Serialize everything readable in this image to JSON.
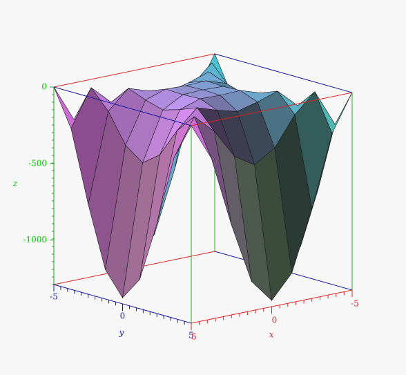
{
  "chart_data": {
    "type": "surface",
    "x_label": "x",
    "y_label": "y",
    "z_label": "z",
    "x": [
      -5,
      -3.75,
      -2.5,
      -1.25,
      0,
      1.25,
      2.5,
      3.75,
      5
    ],
    "y": [
      -5,
      -3.75,
      -2.5,
      -1.25,
      0,
      1.25,
      2.5,
      3.75,
      5
    ],
    "z": [
      [
        0,
        -239.3,
        -703.1,
        -1098.6,
        -1250,
        -1098.6,
        -703.1,
        -239.3,
        0
      ],
      [
        -239.3,
        0,
        -122.1,
        -312.5,
        -395.5,
        -312.5,
        -122.1,
        0,
        -239.3
      ],
      [
        -703.1,
        -122.1,
        0,
        -43.9,
        -78.1,
        -43.9,
        0,
        -122.1,
        -703.1
      ],
      [
        -1098.6,
        -312.5,
        -43.9,
        0,
        -4.9,
        0,
        -43.9,
        -312.5,
        -1098.6
      ],
      [
        -1250,
        -395.5,
        -78.1,
        -4.9,
        0,
        -4.9,
        -78.1,
        -395.5,
        -1250
      ],
      [
        -1098.6,
        -312.5,
        -43.9,
        0,
        -4.9,
        0,
        -43.9,
        -312.5,
        -1098.6
      ],
      [
        -703.1,
        -122.1,
        0,
        -43.9,
        -78.1,
        -43.9,
        0,
        -122.1,
        -703.1
      ],
      [
        -239.3,
        0,
        -122.1,
        -312.5,
        -395.5,
        -312.5,
        -122.1,
        0,
        -239.3
      ],
      [
        0,
        -239.3,
        -703.1,
        -1098.6,
        -1250,
        -1098.6,
        -703.1,
        -239.3,
        0
      ]
    ],
    "xlim": [
      -5,
      5
    ],
    "ylim": [
      -5,
      5
    ],
    "zlim": [
      -1290,
      0
    ],
    "xticks": [
      -5,
      0,
      5
    ],
    "yticks": [
      -5,
      0,
      5
    ],
    "zticks": [
      0,
      -500,
      -1000
    ]
  }
}
